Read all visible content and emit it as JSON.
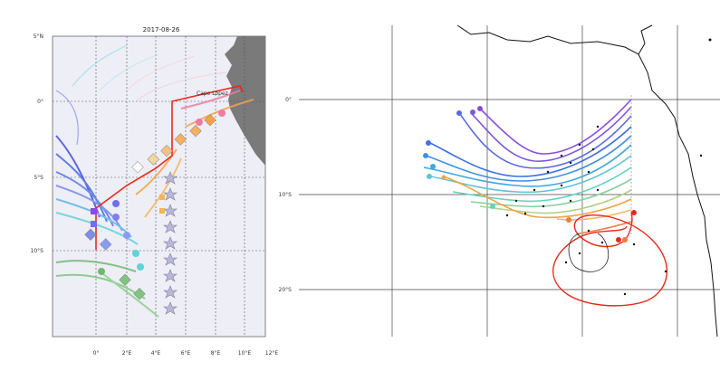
{
  "left_panel": {
    "title": "2017-08-26",
    "lat_labels": [
      "5°N",
      "0°",
      "5°S",
      "10°S"
    ],
    "lon_labels": [
      "0°",
      "2°E",
      "4°E",
      "6°E",
      "8°E",
      "10°E",
      "12°E"
    ],
    "annotation": "Cape Lopez"
  },
  "right_panel": {
    "lat_labels": [
      "0°",
      "10°S",
      "20°S"
    ]
  },
  "colors": {
    "land": "#7a7a7a",
    "water_left": "#eeeef6",
    "red_track": "#e8281c",
    "purple": "#8a4be0",
    "blue": "#3f6fe0",
    "cyan": "#5fd3d8",
    "green": "#6fb86f",
    "orange": "#f2a340",
    "pink": "#f07aa0"
  }
}
